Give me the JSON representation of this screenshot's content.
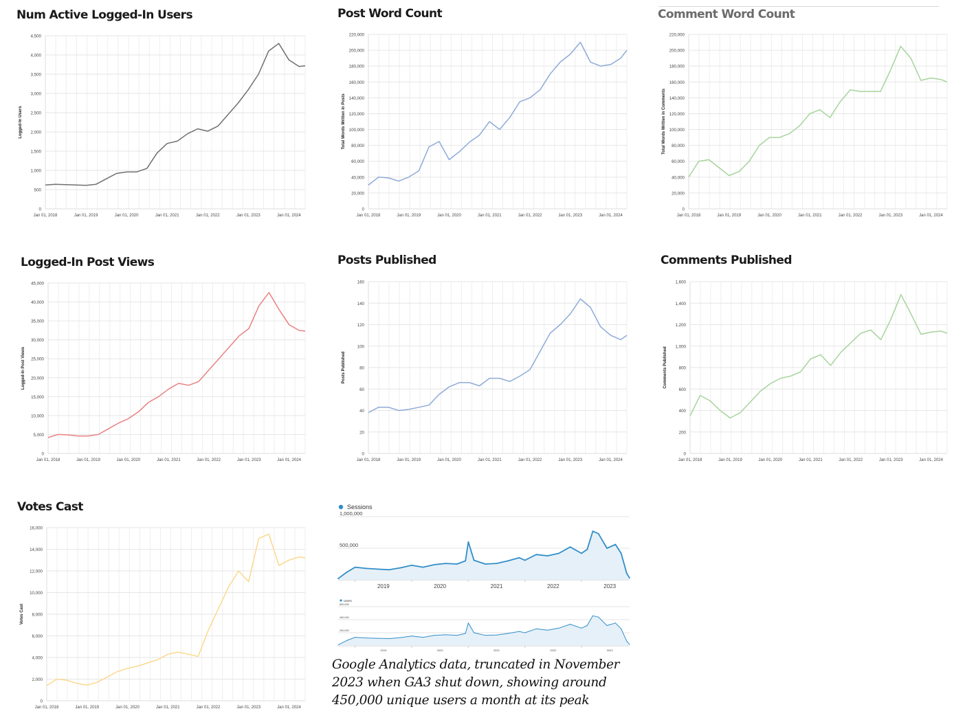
{
  "colors": {
    "gray": "#6f6f6f",
    "blue": "#8eaad8",
    "green": "#a6d49b",
    "red": "#ea8080",
    "yellow": "#fbd98e",
    "ga_blue": "#2f8ec8",
    "ga_fill": "#e6f0f8"
  },
  "panels": [
    {
      "key": "users",
      "title": "Num Active Logged-In Users",
      "ylabel": "Logged-In Users",
      "color": "gray",
      "yticks": [
        "0",
        "500",
        "1,000",
        "1,500",
        "2,000",
        "2,500",
        "3,000",
        "3,500",
        "4,000",
        "4,500"
      ],
      "xticks": [
        "Jan 01, 2018",
        "Jan 01, 2019",
        "Jan 01, 2020",
        "Jan 01, 2021",
        "Jan 01, 2022",
        "Jan 01, 2023",
        "Jan 01, 2024"
      ]
    },
    {
      "key": "postwords",
      "title": "Post Word Count",
      "ylabel": "Total Words Written in Posts",
      "color": "blue",
      "yticks": [
        "0",
        "20,000",
        "40,000",
        "60,000",
        "80,000",
        "100,000",
        "120,000",
        "140,000",
        "160,000",
        "180,000",
        "200,000",
        "220,000"
      ],
      "xticks": [
        "Jan 01, 2018",
        "Jan 01, 2019",
        "Jan 01, 2020",
        "Jan 01, 2021",
        "Jan 01, 2022",
        "Jan 01, 2023",
        "Jan 01, 2024"
      ]
    },
    {
      "key": "commentwords",
      "title": "Comment Word Count",
      "ylabel": "Total Words Written in Comments",
      "color": "green",
      "yticks": [
        "0",
        "20,000",
        "40,000",
        "60,000",
        "80,000",
        "100,000",
        "120,000",
        "140,000",
        "160,000",
        "180,000",
        "200,000",
        "220,000"
      ],
      "xticks": [
        "Jan 01, 2018",
        "Jan 01, 2019",
        "Jan 01, 2020",
        "Jan 01, 2021",
        "Jan 01, 2022",
        "Jan 01, 2023",
        "Jan 01, 2024"
      ]
    },
    {
      "key": "postviews",
      "title": "Logged-In Post Views",
      "ylabel": "Logged-In Post Views",
      "color": "red",
      "yticks": [
        "0",
        "5,000",
        "10,000",
        "15,000",
        "20,000",
        "25,000",
        "30,000",
        "35,000",
        "40,000",
        "45,000"
      ],
      "xticks": [
        "Jan 01, 2018",
        "Jan 01, 2019",
        "Jan 01, 2020",
        "Jan 01, 2021",
        "Jan 01, 2022",
        "Jan 01, 2023",
        "Jan 01, 2024"
      ]
    },
    {
      "key": "posts",
      "title": "Posts Published",
      "ylabel": "Posts Published",
      "color": "blue",
      "yticks": [
        "0",
        "20",
        "40",
        "60",
        "80",
        "100",
        "120",
        "140",
        "160"
      ],
      "xticks": [
        "Jan 01, 2018",
        "Jan 01, 2019",
        "Jan 01, 2020",
        "Jan 01, 2021",
        "Jan 01, 2022",
        "Jan 01, 2023",
        "Jan 01, 2024"
      ]
    },
    {
      "key": "comments",
      "title": "Comments Published",
      "ylabel": "Comments Published",
      "color": "green",
      "yticks": [
        "0",
        "200",
        "400",
        "600",
        "800",
        "1,000",
        "1,200",
        "1,400",
        "1,600"
      ],
      "xticks": [
        "Jan 01, 2018",
        "Jan 01, 2019",
        "Jan 01, 2020",
        "Jan 01, 2021",
        "Jan 01, 2022",
        "Jan 01, 2023",
        "Jan 01, 2024"
      ]
    },
    {
      "key": "votes",
      "title": "Votes Cast",
      "ylabel": "Votes Cast",
      "color": "yellow",
      "yticks": [
        "0",
        "2,000",
        "4,000",
        "6,000",
        "8,000",
        "10,000",
        "12,000",
        "14,000",
        "16,000"
      ],
      "xticks": [
        "Jan 01, 2018",
        "Jan 01, 2019",
        "Jan 01, 2020",
        "Jan 01, 2021",
        "Jan 01, 2022",
        "Jan 01, 2023",
        "Jan 01, 2024"
      ]
    }
  ],
  "ga": {
    "sessions": {
      "legend": "Sessions",
      "yticks": [
        "1,000,000",
        "500,000"
      ],
      "xticks": [
        "2019",
        "2020",
        "2021",
        "2022",
        "2023"
      ]
    },
    "users": {
      "legend": "Users",
      "yticks": [
        "600,000",
        "400,000",
        "200,000"
      ],
      "xticks": [
        "2019",
        "2020",
        "2021",
        "2022",
        "2023"
      ]
    }
  },
  "caption": "Google Analytics data, truncated in November 2023 when GA3 shut down, showing around 450,000 unique users a month at its peak",
  "chart_data": [
    {
      "type": "line",
      "title": "Num Active Logged-In Users",
      "ylabel": "Logged-In Users",
      "ylim": [
        0,
        4500
      ],
      "x": [
        2018,
        2018.25,
        2018.5,
        2018.75,
        2019,
        2019.25,
        2019.5,
        2019.75,
        2020,
        2020.25,
        2020.5,
        2020.75,
        2021,
        2021.25,
        2021.5,
        2021.75,
        2022,
        2022.25,
        2022.5,
        2022.75,
        2023,
        2023.25,
        2023.5,
        2023.75,
        2024,
        2024.25,
        2024.4
      ],
      "series": [
        {
          "values": [
            620,
            640,
            630,
            620,
            610,
            640,
            780,
            920,
            960,
            960,
            1050,
            1450,
            1700,
            1760,
            1950,
            2080,
            2020,
            2150,
            2450,
            2750,
            3100,
            3500,
            4100,
            4300,
            3870,
            3700,
            3720
          ]
        }
      ]
    },
    {
      "type": "line",
      "title": "Post Word Count",
      "ylabel": "Total Words Written in Posts",
      "ylim": [
        0,
        220000
      ],
      "x": [
        2018,
        2018.25,
        2018.5,
        2018.75,
        2019,
        2019.25,
        2019.5,
        2019.75,
        2020,
        2020.25,
        2020.5,
        2020.75,
        2021,
        2021.25,
        2021.5,
        2021.75,
        2022,
        2022.25,
        2022.5,
        2022.75,
        2023,
        2023.25,
        2023.5,
        2023.75,
        2024,
        2024.25,
        2024.4
      ],
      "series": [
        {
          "values": [
            30000,
            40000,
            39000,
            35000,
            40000,
            48000,
            78000,
            85000,
            62000,
            72000,
            84000,
            93000,
            110000,
            100000,
            115000,
            135000,
            140000,
            150000,
            170000,
            185000,
            195000,
            210000,
            185000,
            180000,
            182000,
            190000,
            200000
          ]
        }
      ]
    },
    {
      "type": "line",
      "title": "Comment Word Count",
      "ylabel": "Total Words Written in Comments",
      "ylim": [
        0,
        220000
      ],
      "x": [
        2018,
        2018.25,
        2018.5,
        2018.75,
        2019,
        2019.25,
        2019.5,
        2019.75,
        2020,
        2020.25,
        2020.5,
        2020.75,
        2021,
        2021.25,
        2021.5,
        2021.75,
        2022,
        2022.25,
        2022.5,
        2022.75,
        2023,
        2023.25,
        2023.5,
        2023.75,
        2024,
        2024.25,
        2024.4
      ],
      "series": [
        {
          "values": [
            40000,
            60000,
            62000,
            52000,
            42000,
            47000,
            60000,
            80000,
            90000,
            90000,
            95000,
            105000,
            120000,
            125000,
            115000,
            135000,
            150000,
            148000,
            148000,
            148000,
            175000,
            205000,
            190000,
            162000,
            165000,
            163000,
            160000
          ]
        }
      ]
    },
    {
      "type": "line",
      "title": "Logged-In Post Views",
      "ylabel": "Logged-In Post Views",
      "ylim": [
        0,
        45000
      ],
      "x": [
        2018,
        2018.25,
        2018.5,
        2018.75,
        2019,
        2019.25,
        2019.5,
        2019.75,
        2020,
        2020.25,
        2020.5,
        2020.75,
        2021,
        2021.25,
        2021.5,
        2021.75,
        2022,
        2022.25,
        2022.5,
        2022.75,
        2023,
        2023.25,
        2023.5,
        2023.75,
        2024,
        2024.25,
        2024.4
      ],
      "series": [
        {
          "values": [
            4200,
            5000,
            4900,
            4600,
            4600,
            5000,
            6500,
            8000,
            9200,
            11000,
            13500,
            15000,
            17000,
            18500,
            18000,
            19000,
            22000,
            25000,
            28000,
            31000,
            33000,
            39000,
            42500,
            38000,
            34000,
            32500,
            32300
          ]
        }
      ]
    },
    {
      "type": "line",
      "title": "Posts Published",
      "ylabel": "Posts Published",
      "ylim": [
        0,
        160
      ],
      "x": [
        2018,
        2018.25,
        2018.5,
        2018.75,
        2019,
        2019.25,
        2019.5,
        2019.75,
        2020,
        2020.25,
        2020.5,
        2020.75,
        2021,
        2021.25,
        2021.5,
        2021.75,
        2022,
        2022.25,
        2022.5,
        2022.75,
        2023,
        2023.25,
        2023.5,
        2023.75,
        2024,
        2024.25,
        2024.4
      ],
      "series": [
        {
          "values": [
            38,
            43,
            43,
            40,
            41,
            43,
            45,
            55,
            62,
            66,
            66,
            63,
            70,
            70,
            67,
            72,
            78,
            95,
            112,
            120,
            130,
            144,
            136,
            118,
            110,
            106,
            110
          ]
        }
      ]
    },
    {
      "type": "line",
      "title": "Comments Published",
      "ylabel": "Comments Published",
      "ylim": [
        0,
        1600
      ],
      "x": [
        2018,
        2018.25,
        2018.5,
        2018.75,
        2019,
        2019.25,
        2019.5,
        2019.75,
        2020,
        2020.25,
        2020.5,
        2020.75,
        2021,
        2021.25,
        2021.5,
        2021.75,
        2022,
        2022.25,
        2022.5,
        2022.75,
        2023,
        2023.25,
        2023.5,
        2023.75,
        2024,
        2024.25,
        2024.4
      ],
      "series": [
        {
          "values": [
            350,
            540,
            490,
            400,
            330,
            380,
            480,
            580,
            650,
            700,
            720,
            760,
            880,
            920,
            820,
            940,
            1030,
            1120,
            1150,
            1060,
            1250,
            1480,
            1300,
            1110,
            1130,
            1140,
            1120
          ]
        }
      ]
    },
    {
      "type": "line",
      "title": "Votes Cast",
      "ylabel": "Votes Cast",
      "ylim": [
        0,
        16000
      ],
      "x": [
        2018,
        2018.25,
        2018.5,
        2018.75,
        2019,
        2019.25,
        2019.5,
        2019.75,
        2020,
        2020.25,
        2020.5,
        2020.75,
        2021,
        2021.25,
        2021.5,
        2021.75,
        2022,
        2022.25,
        2022.5,
        2022.75,
        2023,
        2023.25,
        2023.5,
        2023.75,
        2024,
        2024.25,
        2024.4
      ],
      "series": [
        {
          "values": [
            1400,
            2000,
            1900,
            1600,
            1450,
            1700,
            2200,
            2700,
            3000,
            3200,
            3500,
            3800,
            4300,
            4500,
            4300,
            4100,
            6500,
            8500,
            10500,
            12000,
            11000,
            15000,
            15400,
            12500,
            13000,
            13300,
            13200
          ]
        }
      ]
    },
    {
      "type": "area",
      "legend": [
        "Sessions"
      ],
      "ylim": [
        0,
        1000000
      ],
      "x": [
        2018.7,
        2018.85,
        2019,
        2019.2,
        2019.4,
        2019.6,
        2019.8,
        2020,
        2020.2,
        2020.4,
        2020.6,
        2020.8,
        2020.95,
        2021,
        2021.1,
        2021.3,
        2021.5,
        2021.7,
        2021.9,
        2022,
        2022.2,
        2022.4,
        2022.6,
        2022.8,
        2023,
        2023.1,
        2023.2,
        2023.3,
        2023.45,
        2023.6,
        2023.7,
        2023.8,
        2023.85
      ],
      "series": [
        {
          "name": "Sessions",
          "values": [
            20000,
            120000,
            200000,
            180000,
            170000,
            160000,
            190000,
            230000,
            200000,
            240000,
            260000,
            250000,
            300000,
            600000,
            310000,
            250000,
            260000,
            300000,
            350000,
            310000,
            400000,
            380000,
            420000,
            520000,
            420000,
            480000,
            770000,
            730000,
            500000,
            560000,
            420000,
            100000,
            30000
          ]
        }
      ]
    },
    {
      "type": "area",
      "legend": [
        "Users"
      ],
      "ylim": [
        0,
        600000
      ],
      "x": [
        2018.7,
        2018.85,
        2019,
        2019.2,
        2019.4,
        2019.6,
        2019.8,
        2020,
        2020.2,
        2020.4,
        2020.6,
        2020.8,
        2020.95,
        2021,
        2021.1,
        2021.3,
        2021.5,
        2021.7,
        2021.9,
        2022,
        2022.2,
        2022.4,
        2022.6,
        2022.8,
        2023,
        2023.1,
        2023.2,
        2023.3,
        2023.45,
        2023.6,
        2023.7,
        2023.8,
        2023.85
      ],
      "series": [
        {
          "name": "Users",
          "values": [
            15000,
            80000,
            130000,
            120000,
            115000,
            110000,
            125000,
            150000,
            130000,
            160000,
            170000,
            160000,
            190000,
            350000,
            200000,
            160000,
            165000,
            190000,
            220000,
            200000,
            260000,
            240000,
            270000,
            330000,
            270000,
            310000,
            460000,
            440000,
            310000,
            350000,
            260000,
            70000,
            20000
          ]
        }
      ]
    }
  ]
}
